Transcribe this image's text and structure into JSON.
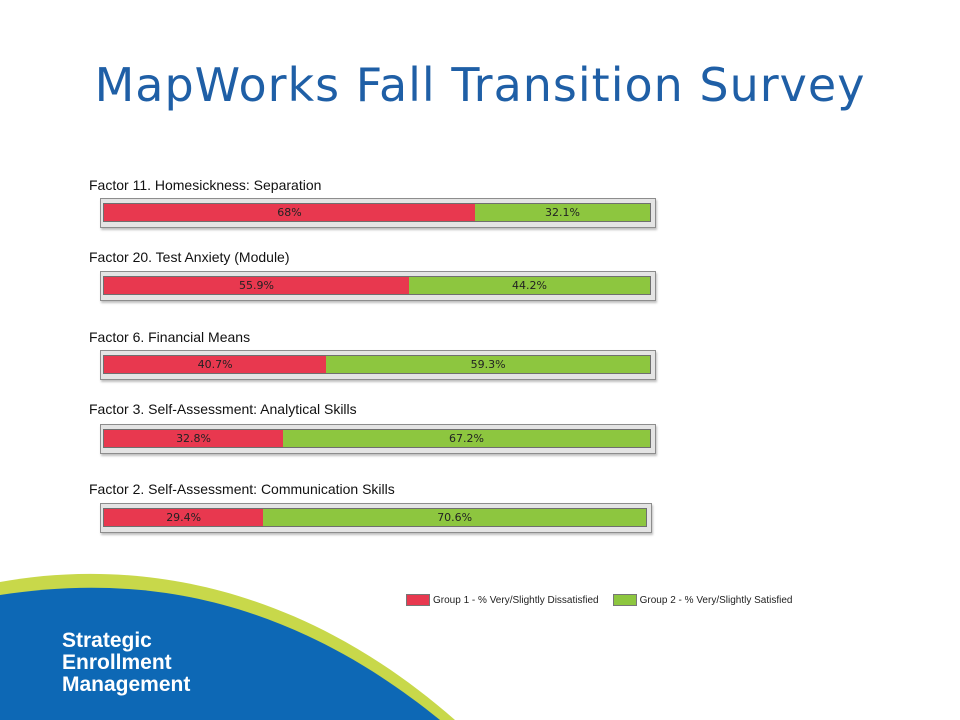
{
  "title": "MapWorks Fall Transition Survey",
  "colors": {
    "group1": "#e8384f",
    "group2": "#8dc63f",
    "title": "#1f5fa6"
  },
  "chart_data": {
    "type": "bar",
    "stacked": true,
    "orientation": "horizontal",
    "categories": [
      "Factor 11. Homesickness: Separation",
      "Factor 20. Test Anxiety (Module)",
      "Factor 6. Financial Means",
      "Factor 3. Self-Assessment: Analytical Skills",
      "Factor 2. Self-Assessment: Communication Skills"
    ],
    "series": [
      {
        "name": "Group 1 - % Very/Slightly Dissatisfied",
        "values": [
          68,
          55.9,
          40.7,
          32.8,
          29.4
        ],
        "labels": [
          "68%",
          "55.9%",
          "40.7%",
          "32.8%",
          "29.4%"
        ]
      },
      {
        "name": "Group 2 - % Very/Slightly Satisfied",
        "values": [
          32.1,
          44.2,
          59.3,
          67.2,
          70.6
        ],
        "labels": [
          "32.1%",
          "44.2%",
          "59.3%",
          "67.2%",
          "70.6%"
        ]
      }
    ],
    "legend": "bottom-right"
  },
  "brand": {
    "line1": "Strategic",
    "line2": "Enrollment",
    "line3": "Management"
  }
}
